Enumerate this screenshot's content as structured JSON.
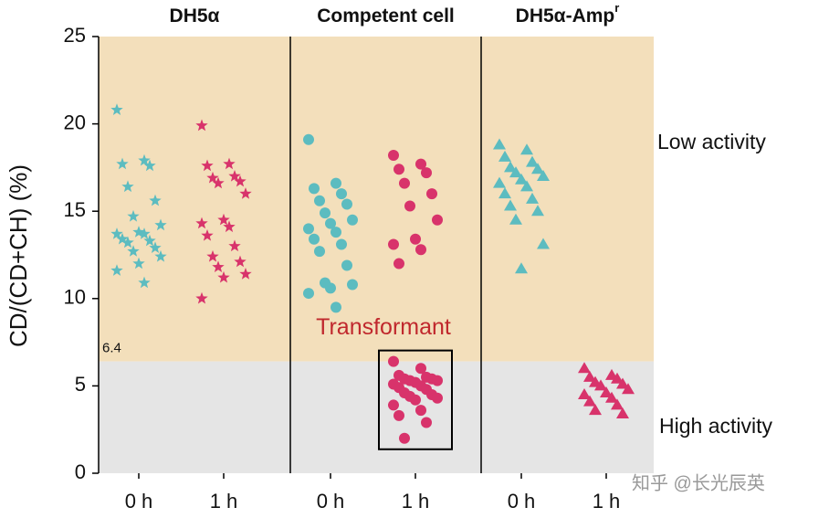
{
  "chart_data": {
    "type": "strip",
    "y_label": "CD/(CD+CH) (%)",
    "ylim": [
      0,
      25
    ],
    "yticks": [
      0,
      5,
      10,
      15,
      20,
      25
    ],
    "threshold": 6.4,
    "threshold_label": "6.4",
    "band_colors": {
      "above": "#f3dfbb",
      "below": "#e5e5e5"
    },
    "annotations": {
      "above": "Low activity",
      "below": "High activity"
    },
    "categories": [
      "0 h",
      "1 h"
    ],
    "panels": [
      {
        "title": "DH5α",
        "series": [
          {
            "category": 0,
            "marker": "star",
            "color": "#5cbcc0",
            "values": [
              20.8,
              17.9,
              17.7,
              17.6,
              16.4,
              15.6,
              14.7,
              14.2,
              13.8,
              13.7,
              13.7,
              13.4,
              13.3,
              13.2,
              12.9,
              12.7,
              12.4,
              12.0,
              11.6,
              10.9
            ]
          },
          {
            "category": 1,
            "marker": "star",
            "color": "#d8336b",
            "values": [
              19.9,
              17.7,
              17.6,
              17.0,
              16.9,
              16.7,
              16.6,
              16.0,
              14.5,
              14.3,
              14.1,
              13.6,
              13.0,
              12.4,
              12.1,
              11.8,
              11.4,
              11.2,
              10.0
            ]
          }
        ]
      },
      {
        "title": "Competent cell",
        "series": [
          {
            "category": 0,
            "marker": "circle",
            "color": "#5cbcc0",
            "values": [
              19.1,
              16.6,
              16.3,
              16.0,
              15.6,
              15.4,
              14.9,
              14.5,
              14.3,
              14.0,
              13.8,
              13.4,
              13.1,
              12.7,
              11.9,
              10.9,
              10.8,
              10.6,
              10.3,
              9.5
            ]
          },
          {
            "category": 1,
            "marker": "circle",
            "color": "#d8336b",
            "values": [
              18.2,
              17.7,
              17.4,
              17.2,
              16.6,
              16.0,
              15.3,
              14.5,
              13.4,
              13.1,
              12.8,
              12.0
            ]
          },
          {
            "category": 1,
            "marker": "circle",
            "color": "#d8336b",
            "label": "Transformant",
            "label_color": "#c0282d",
            "values": [
              6.4,
              6.0,
              5.6,
              5.5,
              5.4,
              5.4,
              5.3,
              5.3,
              5.2,
              5.1,
              5.0,
              4.9,
              4.8,
              4.6,
              4.5,
              4.4,
              4.3,
              4.2,
              3.9,
              3.6,
              3.3,
              2.9,
              2.0
            ]
          }
        ]
      },
      {
        "title": "DH5α-Amp",
        "title_superscript": "r",
        "series": [
          {
            "category": 0,
            "marker": "triangle",
            "color": "#5cbcc0",
            "values": [
              18.8,
              18.5,
              18.1,
              17.8,
              17.5,
              17.4,
              17.2,
              17.0,
              16.8,
              16.6,
              16.4,
              16.0,
              15.7,
              15.3,
              15.0,
              14.5,
              13.1,
              11.7
            ]
          },
          {
            "category": 1,
            "marker": "triangle",
            "color": "#d8336b",
            "values": [
              6.0,
              5.6,
              5.5,
              5.4,
              5.2,
              5.1,
              5.0,
              4.8,
              4.6,
              4.5,
              4.3,
              4.1,
              3.9,
              3.6,
              3.4
            ]
          }
        ]
      }
    ],
    "watermark": "知乎 @长光辰英"
  }
}
